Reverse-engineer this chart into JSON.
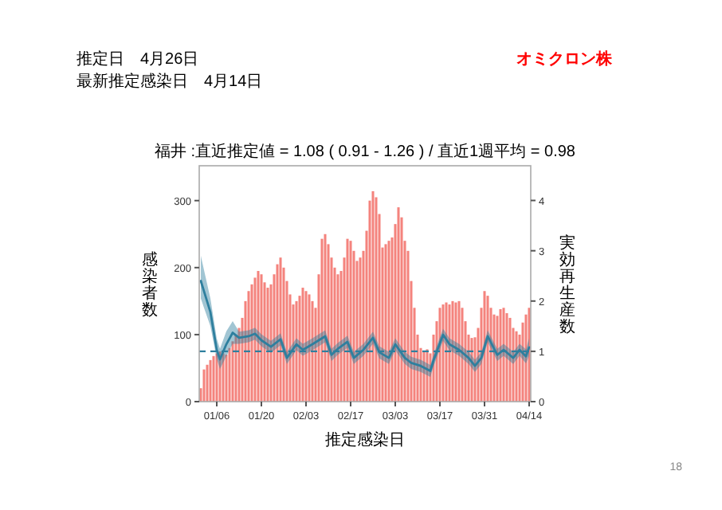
{
  "chart_data": {
    "type": "bar",
    "title": "福井 :直近推定値 = 1.08 ( 0.91 - 1.26 ) / 直近1週平均 = 0.98",
    "xlabel": "推定感染日",
    "ylabel": "感染者数",
    "y2label": "実効再生産数",
    "annotations": [
      "推定日　4月26日",
      "最新推定感染日　4月14日",
      "オミクロン株",
      "18"
    ],
    "xlim": [
      "--01-01",
      "--04-14"
    ],
    "xticks": [
      {
        "value": "--01-06",
        "label": "01/06"
      },
      {
        "value": "--01-20",
        "label": "01/20"
      },
      {
        "value": "--02-03",
        "label": "02/03"
      },
      {
        "value": "--02-17",
        "label": "02/17"
      },
      {
        "value": "--03-03",
        "label": "03/03"
      },
      {
        "value": "--03-17",
        "label": "03/17"
      },
      {
        "value": "--03-31",
        "label": "03/31"
      },
      {
        "value": "--04-14",
        "label": "04/14"
      }
    ],
    "ylim": [
      0,
      352
    ],
    "yticks": [
      0,
      100,
      200,
      300
    ],
    "y2lim": [
      0,
      4.69
    ],
    "y2ticks": [
      0,
      1,
      2,
      3,
      4
    ],
    "grid": false,
    "ref_lines": [
      {
        "axis": "y2",
        "value": 1,
        "color": "#2e7f9e",
        "line_style": "dashed"
      }
    ],
    "series": [
      {
        "color": "#f4837d",
        "x": [
          "--01-01",
          "--01-02",
          "--01-03",
          "--01-04",
          "--01-05",
          "--01-06",
          "--01-07",
          "--01-08",
          "--01-09",
          "--01-10",
          "--01-11",
          "--01-12",
          "--01-13",
          "--01-14",
          "--01-15",
          "--01-16",
          "--01-17",
          "--01-18",
          "--01-19",
          "--01-20",
          "--01-21",
          "--01-22",
          "--01-23",
          "--01-24",
          "--01-25",
          "--01-26",
          "--01-27",
          "--01-28",
          "--01-29",
          "--01-30",
          "--01-31",
          "--02-01",
          "--02-02",
          "--02-03",
          "--02-04",
          "--02-05",
          "--02-06",
          "--02-07",
          "--02-08",
          "--02-09",
          "--02-10",
          "--02-11",
          "--02-12",
          "--02-13",
          "--02-14",
          "--02-15",
          "--02-16",
          "--02-17",
          "--02-18",
          "--02-19",
          "--02-20",
          "--02-21",
          "--02-22",
          "--02-23",
          "--02-24",
          "--02-25",
          "--02-26",
          "--02-27",
          "--02-28",
          "--03-01",
          "--03-02",
          "--03-03",
          "--03-04",
          "--03-05",
          "--03-06",
          "--03-07",
          "--03-08",
          "--03-09",
          "--03-10",
          "--03-11",
          "--03-12",
          "--03-13",
          "--03-14",
          "--03-15",
          "--03-16",
          "--03-17",
          "--03-18",
          "--03-19",
          "--03-20",
          "--03-21",
          "--03-22",
          "--03-23",
          "--03-24",
          "--03-25",
          "--03-26",
          "--03-27",
          "--03-28",
          "--03-29",
          "--03-30",
          "--03-31",
          "--04-01",
          "--04-02",
          "--04-03",
          "--04-04",
          "--04-05",
          "--04-06",
          "--04-07",
          "--04-08",
          "--04-09",
          "--04-10",
          "--04-11",
          "--04-12",
          "--04-13",
          "--04-14"
        ],
        "values": [
          20,
          48,
          55,
          62,
          68,
          72,
          75,
          72,
          70,
          80,
          90,
          100,
          110,
          125,
          150,
          165,
          175,
          185,
          195,
          190,
          178,
          170,
          175,
          190,
          205,
          215,
          200,
          180,
          160,
          145,
          150,
          158,
          170,
          165,
          160,
          150,
          140,
          190,
          243,
          250,
          235,
          215,
          200,
          190,
          195,
          215,
          243,
          240,
          225,
          210,
          215,
          225,
          255,
          300,
          314,
          305,
          280,
          230,
          235,
          240,
          245,
          265,
          290,
          275,
          240,
          225,
          180,
          140,
          100,
          80,
          75,
          78,
          72,
          100,
          120,
          140,
          145,
          148,
          145,
          150,
          148,
          150,
          140,
          120,
          100,
          95,
          96,
          110,
          140,
          165,
          158,
          140,
          130,
          128,
          138,
          140,
          132,
          125,
          110,
          105,
          100,
          118,
          130,
          140
        ]
      },
      {
        "type": "line",
        "axis": "y2",
        "color": "#2e7f9e",
        "x": [
          "--01-01",
          "--01-04",
          "--01-06",
          "--01-07",
          "--01-09",
          "--01-11",
          "--01-13",
          "--01-16",
          "--01-18",
          "--01-20",
          "--01-23",
          "--01-26",
          "--01-28",
          "--01-31",
          "--02-02",
          "--02-05",
          "--02-09",
          "--02-11",
          "--02-13",
          "--02-16",
          "--02-18",
          "--02-21",
          "--02-24",
          "--02-26",
          "--03-01",
          "--03-03",
          "--03-06",
          "--03-08",
          "--03-11",
          "--03-14",
          "--03-15",
          "--03-18",
          "--03-20",
          "--03-23",
          "--03-26",
          "--03-28",
          "--03-30",
          "--04-01",
          "--04-04",
          "--04-06",
          "--04-09",
          "--04-11",
          "--04-13",
          "--04-14"
        ],
        "values": [
          2.4,
          1.78,
          1.03,
          0.84,
          1.14,
          1.37,
          1.27,
          1.3,
          1.35,
          1.22,
          1.09,
          1.24,
          0.87,
          1.14,
          1.03,
          1.14,
          1.3,
          0.93,
          1.05,
          1.19,
          0.87,
          1.03,
          1.27,
          0.98,
          0.87,
          1.14,
          0.87,
          0.77,
          0.71,
          0.61,
          0.82,
          1.33,
          1.14,
          1.03,
          0.87,
          0.71,
          0.87,
          1.3,
          0.93,
          1.03,
          0.87,
          1.03,
          0.9,
          1.08
        ],
        "lower": [
          2.05,
          1.5,
          0.85,
          0.65,
          0.9,
          1.15,
          1.15,
          1.18,
          1.23,
          1.1,
          0.97,
          1.12,
          0.75,
          1.02,
          0.91,
          1.02,
          1.18,
          0.81,
          0.93,
          1.07,
          0.75,
          0.91,
          1.15,
          0.86,
          0.75,
          1.02,
          0.75,
          0.65,
          0.59,
          0.49,
          0.7,
          1.21,
          1.02,
          0.91,
          0.75,
          0.59,
          0.75,
          1.18,
          0.81,
          0.91,
          0.75,
          0.91,
          0.76,
          0.91
        ],
        "upper": [
          2.9,
          2.05,
          1.25,
          1.05,
          1.4,
          1.6,
          1.39,
          1.42,
          1.47,
          1.34,
          1.21,
          1.36,
          0.99,
          1.26,
          1.15,
          1.26,
          1.42,
          1.05,
          1.17,
          1.31,
          0.99,
          1.15,
          1.39,
          1.1,
          0.99,
          1.26,
          0.99,
          0.89,
          0.83,
          0.73,
          0.94,
          1.45,
          1.26,
          1.15,
          0.99,
          0.83,
          0.99,
          1.42,
          1.05,
          1.15,
          0.99,
          1.15,
          1.04,
          1.26
        ]
      }
    ]
  }
}
